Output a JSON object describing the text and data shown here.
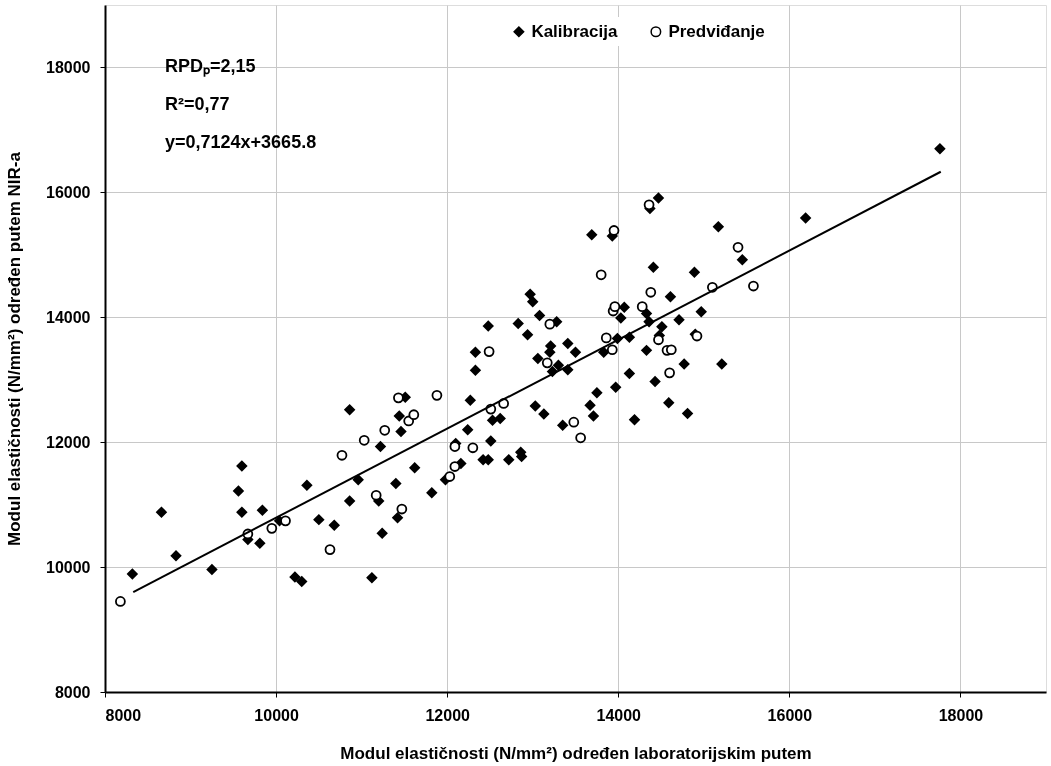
{
  "chart_data": {
    "type": "scatter",
    "xlabel": "Modul elastičnosti (N/mm²) određen laboratorijskim putem",
    "ylabel": "Modul elastičnosti (N/mm²) određen putem NIR-a",
    "annotations": [
      "RPDₚ=2,15",
      "R²=0,77",
      "y=0,7124x+3665.8"
    ],
    "xlim": [
      8000,
      19000
    ],
    "ylim": [
      8000,
      19000
    ],
    "xticks": [
      8000,
      10000,
      12000,
      14000,
      16000,
      18000
    ],
    "yticks": [
      8000,
      10000,
      12000,
      14000,
      16000,
      18000
    ],
    "grid": true,
    "legend": "top",
    "series": [
      {
        "name": "Kalibracija",
        "marker": "diamond",
        "color": "#000000",
        "x": [
          8320,
          8660,
          8830,
          9250,
          9600,
          9560,
          9600,
          9840,
          9670,
          9810,
          10040,
          10220,
          10300,
          10360,
          10500,
          10680,
          10860,
          10860,
          10960,
          11120,
          11220,
          11200,
          11240,
          11400,
          11420,
          11440,
          11460,
          11620,
          11510,
          12270,
          12240,
          12100,
          12160,
          11980,
          11820,
          12510,
          12420,
          12480,
          12530,
          12620,
          12720,
          12860,
          12870,
          12480,
          12330,
          12330,
          12830,
          12940,
          12970,
          13000,
          13080,
          13280,
          13210,
          13200,
          13060,
          13230,
          13300,
          13410,
          13410,
          13030,
          13130,
          13350,
          13500,
          13670,
          13710,
          13750,
          13970,
          14130,
          14190,
          14430,
          14590,
          14810,
          14770,
          15210,
          13690,
          13830,
          13990,
          14130,
          14330,
          14480,
          14510,
          14710,
          14970,
          14900,
          14070,
          14030,
          14330,
          14360,
          14610,
          14410,
          14890,
          13930,
          14370,
          14470,
          15170,
          15450,
          16190,
          17760
        ],
        "values": [
          9890,
          10880,
          10180,
          9960,
          11620,
          11220,
          10880,
          10910,
          10440,
          10380,
          10740,
          9840,
          9770,
          11310,
          10760,
          10670,
          12520,
          11060,
          11400,
          9830,
          11930,
          11060,
          10540,
          11340,
          10790,
          12420,
          12170,
          11590,
          12720,
          12670,
          12200,
          11980,
          11660,
          11400,
          11190,
          12020,
          11720,
          11720,
          12350,
          12380,
          11720,
          11840,
          11770,
          13860,
          13440,
          13150,
          13900,
          13720,
          14370,
          14250,
          14030,
          13930,
          13540,
          13440,
          13340,
          13130,
          13230,
          13160,
          13580,
          12580,
          12450,
          12270,
          13440,
          12590,
          12420,
          12790,
          12880,
          13100,
          12360,
          12970,
          12630,
          12460,
          13250,
          13250,
          15320,
          13440,
          13660,
          13680,
          13470,
          13710,
          13850,
          13960,
          14090,
          13730,
          14160,
          13990,
          14060,
          13930,
          14330,
          14800,
          14720,
          15300,
          15740,
          15910,
          15450,
          14920,
          15590,
          16700
        ]
      },
      {
        "name": "Predviđanje",
        "marker": "circle",
        "color": "#000000",
        "x": [
          8180,
          9670,
          9950,
          10110,
          10630,
          10770,
          11030,
          11270,
          11170,
          11470,
          11550,
          11610,
          11430,
          11880,
          12090,
          12090,
          12030,
          12300,
          12510,
          12660,
          12490,
          13200,
          13170,
          13480,
          13560,
          14600,
          13800,
          13860,
          13930,
          14570,
          14620,
          14470,
          14920,
          13940,
          13960,
          14280,
          14380,
          13950,
          14360,
          15400,
          15100,
          15580
        ],
        "values": [
          9450,
          10530,
          10620,
          10740,
          10280,
          11790,
          12030,
          12190,
          11150,
          10930,
          12340,
          12440,
          12710,
          12750,
          11930,
          11610,
          11450,
          11910,
          12530,
          12620,
          13450,
          13890,
          13270,
          12320,
          12070,
          13110,
          14680,
          13670,
          13480,
          13470,
          13480,
          13640,
          13700,
          14100,
          14170,
          14170,
          14400,
          15390,
          15800,
          15120,
          14480,
          14500
        ]
      },
      {
        "type": "line",
        "color": "#000000",
        "line_style": "solid",
        "marker": "none",
        "x": [
          8330,
          17770
        ],
        "values": [
          9600,
          16330
        ]
      }
    ]
  }
}
